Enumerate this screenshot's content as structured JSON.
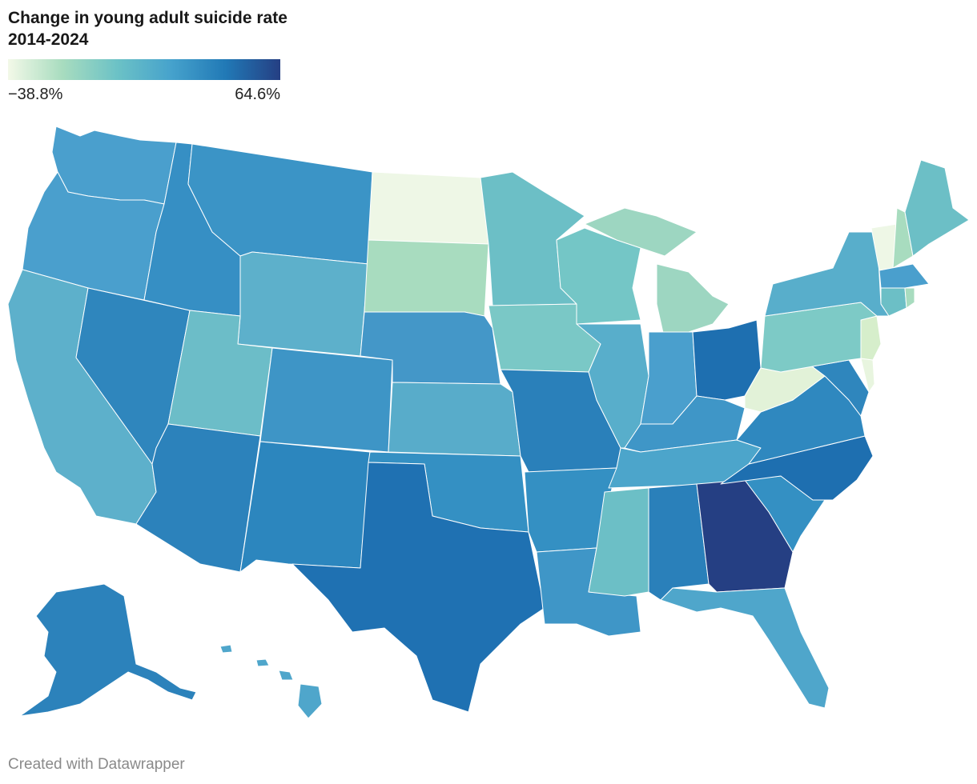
{
  "title": "Change in young adult suicide rate 2014-2024",
  "legend": {
    "min_label": "−38.8%",
    "max_label": "64.6%",
    "min": -38.8,
    "max": 64.6,
    "colors": [
      "#f3f9e8",
      "#a8dcbf",
      "#6cc2c6",
      "#46a2cc",
      "#2179b6",
      "#253f83"
    ]
  },
  "credit": "Created with Datawrapper",
  "states": {
    "WA": "#4a9fcd",
    "OR": "#4a9fcd",
    "CA": "#5db0cb",
    "NV": "#2f86bd",
    "ID": "#368fc4",
    "MT": "#3b94c6",
    "WY": "#5db0cb",
    "UT": "#6cbdc8",
    "AZ": "#2c82bb",
    "CO": "#3e95c6",
    "NM": "#2c86be",
    "ND": "#eef7e6",
    "SD": "#a8dcbf",
    "NE": "#4497c8",
    "KS": "#58acca",
    "OK": "#3490c3",
    "TX": "#1f71b2",
    "MN": "#6cbfc6",
    "IA": "#7ac8c6",
    "MO": "#2a80ba",
    "AR": "#3490c3",
    "LA": "#3f96c7",
    "WI": "#74c6c6",
    "IL": "#58aecb",
    "MI": "#9dd6c1",
    "IN": "#4a9fcd",
    "OH": "#1e6fb0",
    "KY": "#3f96c7",
    "TN": "#4ca5cb",
    "MS": "#6cbfc6",
    "AL": "#2a80ba",
    "GA": "#253f83",
    "FL": "#4fa6cb",
    "SC": "#3490c3",
    "NC": "#1e6fb0",
    "VA": "#2f88bf",
    "WV": "#e2f2d8",
    "PA": "#7dcac6",
    "NY": "#58aecb",
    "ME": "#6cbfc6",
    "NH": "#a8dcbf",
    "VT": "#eef7e6",
    "MA": "#4a9fcd",
    "CT": "#6cbfc6",
    "RI": "#a8dcbf",
    "NJ": "#d6eecb",
    "DE": "#e8f5df",
    "MD": "#2f86bd",
    "AK": "#2c82bb",
    "HI": "#4fa6cb"
  }
}
